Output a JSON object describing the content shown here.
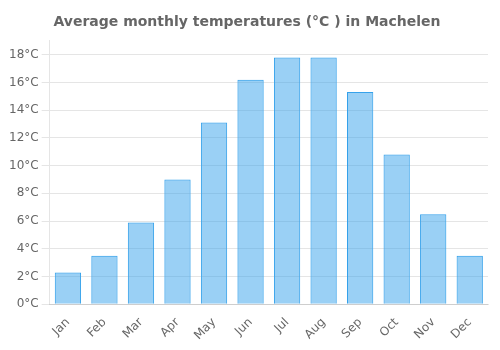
{
  "chart_data": {
    "type": "bar",
    "title": "Average monthly temperatures (°C ) in Machelen",
    "categories": [
      "Jan",
      "Feb",
      "Mar",
      "Apr",
      "May",
      "Jun",
      "Jul",
      "Aug",
      "Sep",
      "Oct",
      "Nov",
      "Dec"
    ],
    "values": [
      2.3,
      3.5,
      5.9,
      9.0,
      13.1,
      16.2,
      17.8,
      17.8,
      15.3,
      10.8,
      6.5,
      3.5
    ],
    "ylim": [
      0,
      19
    ],
    "yticks": [
      {
        "value": 0,
        "label": "0°C"
      },
      {
        "value": 2,
        "label": "2°C"
      },
      {
        "value": 4,
        "label": "4°C"
      },
      {
        "value": 6,
        "label": "6°C"
      },
      {
        "value": 8,
        "label": "8°C"
      },
      {
        "value": 10,
        "label": "10°C"
      },
      {
        "value": 12,
        "label": "12°C"
      },
      {
        "value": 14,
        "label": "14°C"
      },
      {
        "value": 16,
        "label": "16°C"
      },
      {
        "value": 18,
        "label": "18°C"
      }
    ],
    "grid": true
  }
}
